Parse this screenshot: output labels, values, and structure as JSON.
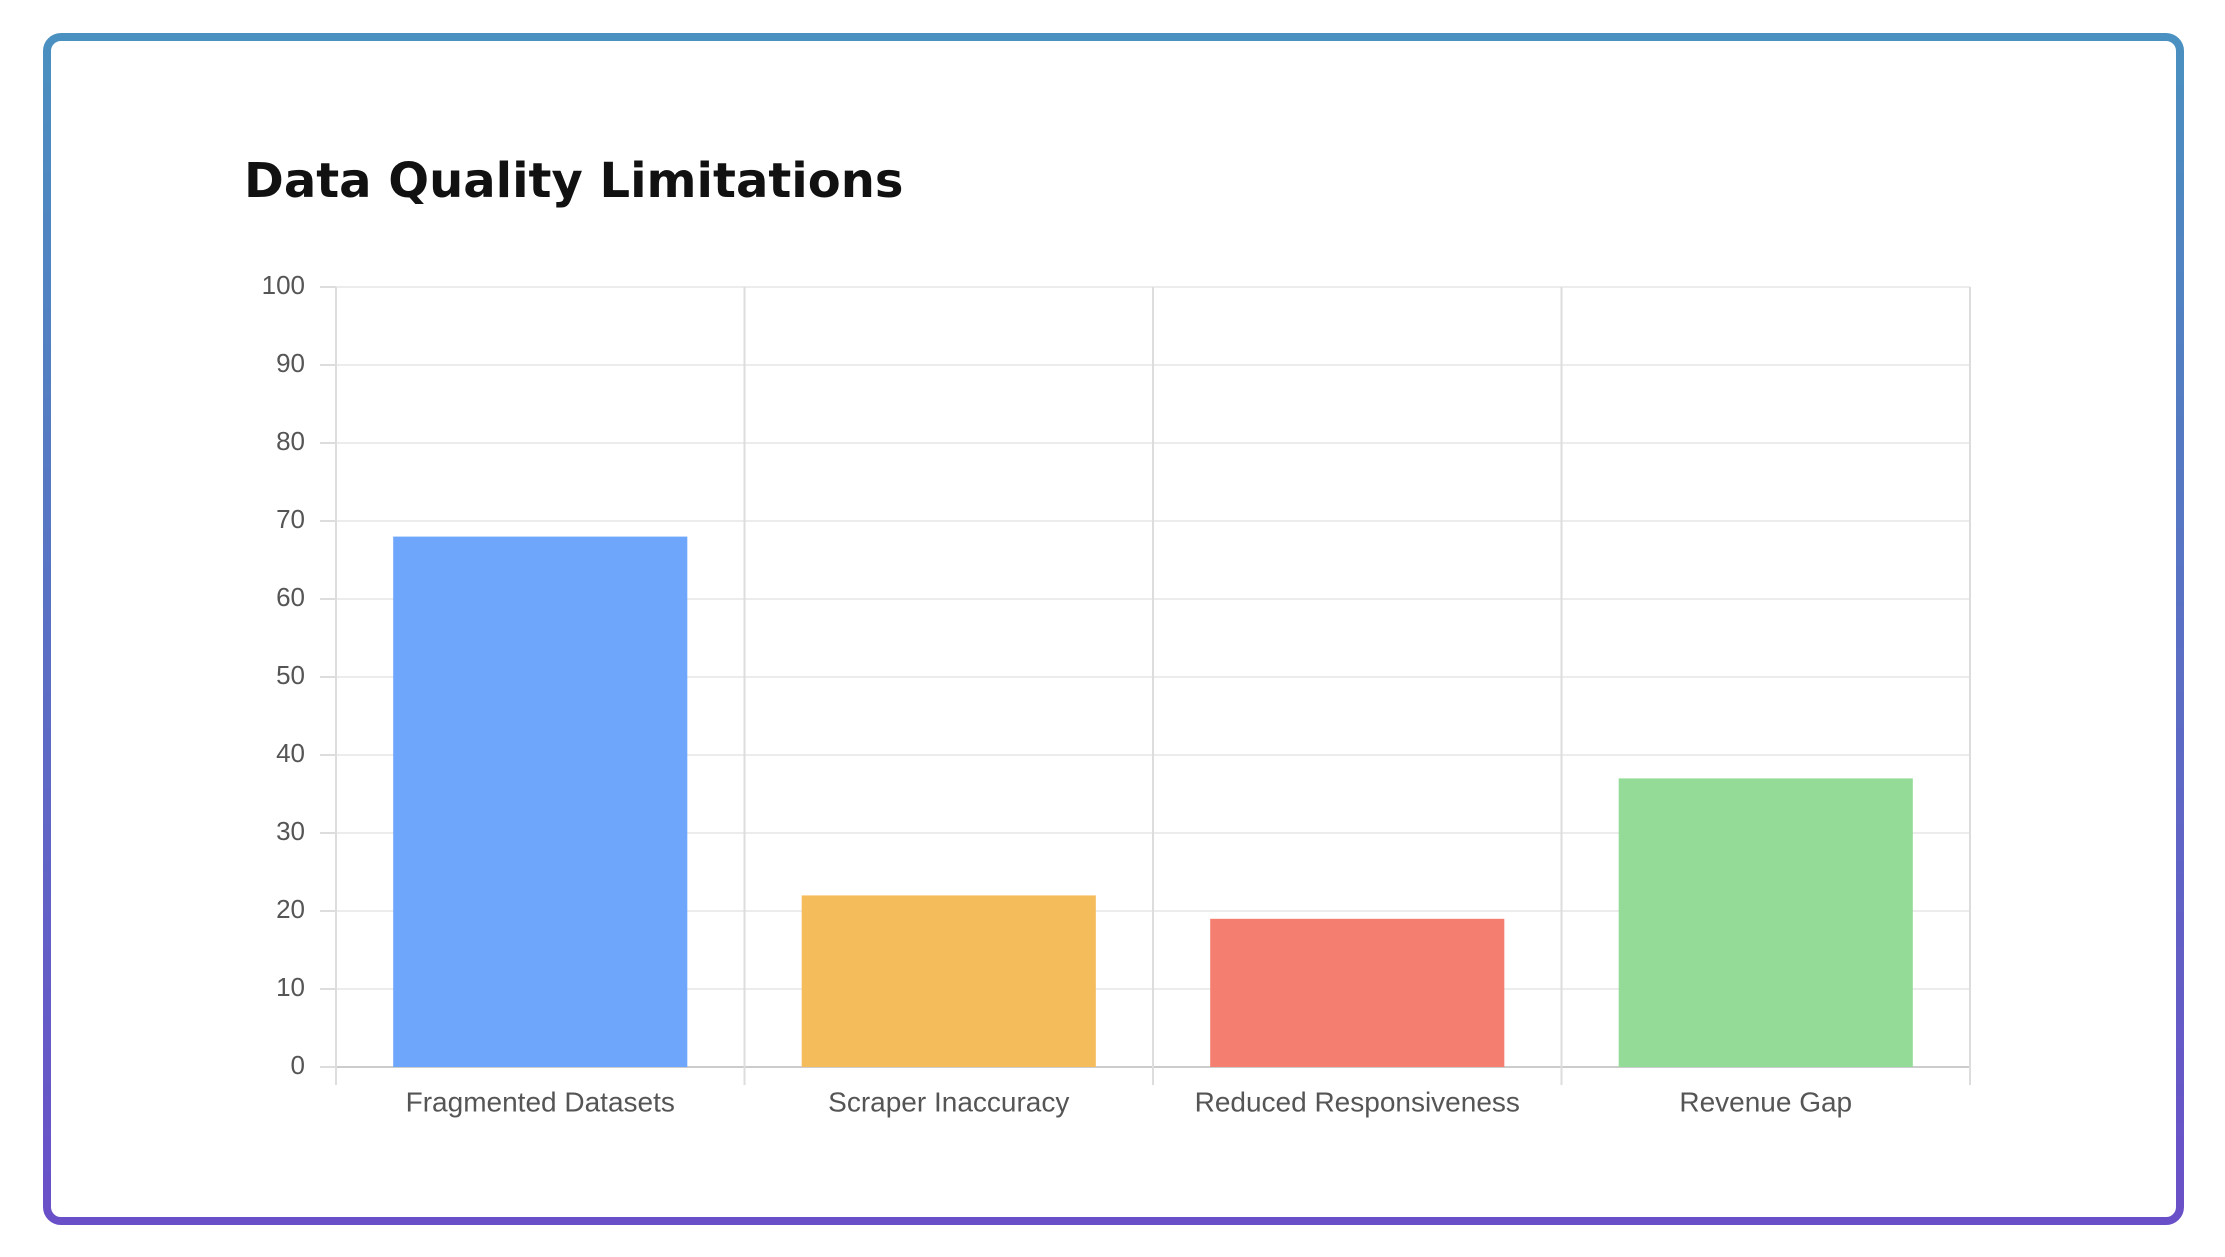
{
  "chart_data": {
    "type": "bar",
    "title": "Data Quality Limitations",
    "categories": [
      "Fragmented Datasets",
      "Scraper Inaccuracy",
      "Reduced Responsiveness",
      "Revenue Gap"
    ],
    "values": [
      68,
      22,
      19,
      37
    ],
    "colors": [
      "#6ea6fc",
      "#f5bc5c",
      "#f47f70",
      "#93db96"
    ],
    "ylim": [
      0,
      100
    ],
    "yticks": [
      0,
      10,
      20,
      30,
      40,
      50,
      60,
      70,
      80,
      90,
      100
    ],
    "grid": true
  }
}
